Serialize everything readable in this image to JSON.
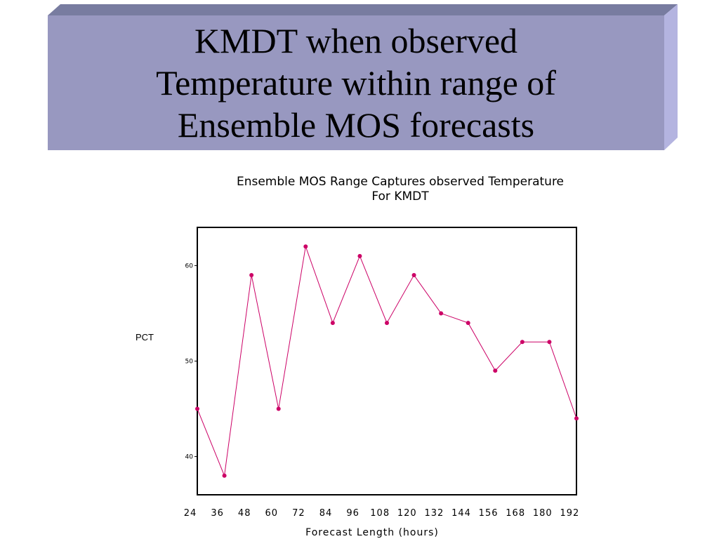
{
  "slide": {
    "title_lines": [
      "KMDT when observed",
      "Temperature within range of",
      "Ensemble MOS forecasts"
    ]
  },
  "colors": {
    "banner_face": "#9898c0",
    "banner_top": "#787ca0",
    "banner_side": "#b4b4e0",
    "series": "#cc0066"
  },
  "chart_data": {
    "type": "line",
    "title_lines": [
      "Ensemble MOS Range Captures observed Temperature",
      "For KMDT"
    ],
    "xlabel": "Forecast Length (hours)",
    "ylabel": "PCT",
    "x": [
      24,
      36,
      48,
      60,
      72,
      84,
      96,
      108,
      120,
      132,
      144,
      156,
      168,
      180,
      192
    ],
    "x_tick_labels": [
      "24",
      "36",
      "48",
      "60",
      "72",
      "84",
      "96",
      "108",
      "120",
      "132",
      "144",
      "156",
      "168",
      "180",
      "192"
    ],
    "y_ticks": [
      40,
      50,
      60
    ],
    "y_tick_labels": [
      "40",
      "50",
      "60"
    ],
    "xlim": [
      24,
      192
    ],
    "ylim": [
      36,
      64
    ],
    "series": [
      {
        "values": [
          45,
          38,
          59,
          45,
          62,
          54,
          61,
          54,
          59,
          55,
          54,
          49,
          52,
          52,
          44
        ]
      }
    ],
    "grid": false
  }
}
